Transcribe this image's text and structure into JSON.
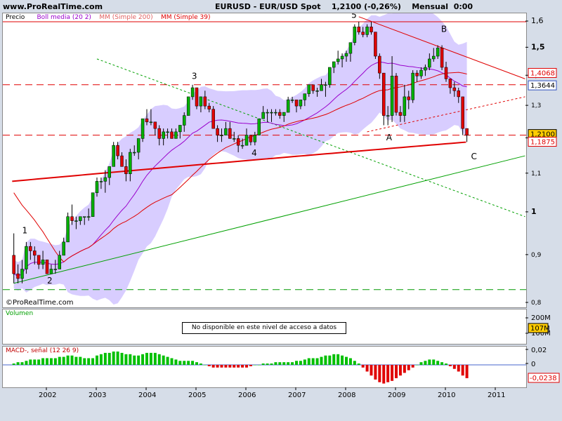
{
  "site": "www.ProRealTime.com",
  "header": {
    "instrument": "EURUSD - EUR/USD Spot",
    "last": "1,2100 (-0,26%)",
    "period": "Mensual",
    "time": "0:00"
  },
  "legend": {
    "price": "Precio",
    "boll": "Boll media (20 2)",
    "mm200": "MM (Simple 200)",
    "mm39": "MM (Simple 39)"
  },
  "watermark": "©ProRealTime.com",
  "volume": {
    "label": "Volumen",
    "notice": "No disponible en este nivel de acceso a datos",
    "ticks": [
      "200M",
      "107M",
      "100M"
    ],
    "highlight": "107M"
  },
  "macd": {
    "label": "MACD-, señal (12 26 9)",
    "ticks": [
      "0,02",
      "0",
      "-0,0238"
    ],
    "highlight": "-0,0238"
  },
  "price_tags": {
    "red1": "1,4068",
    "blue": "1,3644",
    "yellow": "1,2100",
    "red2": "1,1875"
  },
  "colors": {
    "up": "#00b000",
    "down": "#e00000",
    "band": "#cbbcff",
    "boll": "#9900cc",
    "mm39": "#e00000",
    "mm200": "#e00000",
    "trend_green": "#00a000",
    "trend_red": "#e00000",
    "macd_up": "#00c000",
    "macd_down": "#e00000",
    "background": "#d6dde8"
  },
  "wave_labels": [
    "1",
    "2",
    "3",
    "4",
    "5",
    "A",
    "B",
    "C"
  ],
  "chart_data": {
    "type": "candlestick",
    "frequency": "monthly",
    "title": "EURUSD - EUR/USD Spot",
    "xlabel": "",
    "ylabel": "",
    "ylim": [
      0.8,
      1.62
    ],
    "x_ticks": [
      "2002",
      "2003",
      "2004",
      "2005",
      "2006",
      "2007",
      "2008",
      "2009",
      "2010",
      "2011"
    ],
    "y_ticks": [
      "1,6",
      "1,5",
      "1,4",
      "1,3",
      "1,2",
      "1,1",
      "1",
      "0,9",
      "0,8"
    ],
    "grid": false,
    "horizontal_levels": [
      {
        "value": 1.6,
        "style": "solid",
        "color": "red"
      },
      {
        "value": 1.37,
        "style": "dashed",
        "color": "red"
      },
      {
        "value": 1.21,
        "style": "dashed",
        "color": "red"
      },
      {
        "value": 0.827,
        "style": "dashed",
        "color": "green"
      }
    ],
    "trendlines": [
      {
        "color": "green",
        "style": "solid",
        "from": [
          "2001-05",
          0.84
        ],
        "to": [
          "2011-08",
          1.15
        ]
      },
      {
        "color": "green",
        "style": "dotted",
        "from": [
          "2003-01",
          1.46
        ],
        "to": [
          "2011-08",
          0.99
        ]
      },
      {
        "color": "red",
        "style": "solid",
        "from": [
          "2008-04",
          1.62
        ],
        "to": [
          "2011-08",
          1.39
        ]
      },
      {
        "color": "red",
        "style": "dotted",
        "from": [
          "2008-06",
          1.22
        ],
        "to": [
          "2011-08",
          1.33
        ]
      }
    ],
    "candles": [
      {
        "d": "2001-05",
        "o": 0.9,
        "h": 0.95,
        "l": 0.84,
        "c": 0.86
      },
      {
        "d": "2001-06",
        "o": 0.86,
        "h": 0.88,
        "l": 0.84,
        "c": 0.85
      },
      {
        "d": "2001-07",
        "o": 0.85,
        "h": 0.89,
        "l": 0.84,
        "c": 0.87
      },
      {
        "d": "2001-08",
        "o": 0.87,
        "h": 0.93,
        "l": 0.86,
        "c": 0.92
      },
      {
        "d": "2001-09",
        "o": 0.92,
        "h": 0.93,
        "l": 0.89,
        "c": 0.91
      },
      {
        "d": "2001-10",
        "o": 0.91,
        "h": 0.92,
        "l": 0.88,
        "c": 0.9
      },
      {
        "d": "2001-11",
        "o": 0.9,
        "h": 0.9,
        "l": 0.87,
        "c": 0.88
      },
      {
        "d": "2001-12",
        "o": 0.88,
        "h": 0.91,
        "l": 0.87,
        "c": 0.89
      },
      {
        "d": "2002-01",
        "o": 0.89,
        "h": 0.89,
        "l": 0.86,
        "c": 0.86
      },
      {
        "d": "2002-02",
        "o": 0.86,
        "h": 0.88,
        "l": 0.86,
        "c": 0.87
      },
      {
        "d": "2002-03",
        "o": 0.87,
        "h": 0.89,
        "l": 0.86,
        "c": 0.87
      },
      {
        "d": "2002-04",
        "o": 0.87,
        "h": 0.91,
        "l": 0.87,
        "c": 0.9
      },
      {
        "d": "2002-05",
        "o": 0.9,
        "h": 0.94,
        "l": 0.9,
        "c": 0.93
      },
      {
        "d": "2002-06",
        "o": 0.93,
        "h": 1.0,
        "l": 0.93,
        "c": 0.99
      },
      {
        "d": "2002-07",
        "o": 0.99,
        "h": 1.02,
        "l": 0.97,
        "c": 0.98
      },
      {
        "d": "2002-08",
        "o": 0.98,
        "h": 0.99,
        "l": 0.96,
        "c": 0.98
      },
      {
        "d": "2002-09",
        "o": 0.98,
        "h": 0.99,
        "l": 0.97,
        "c": 0.99
      },
      {
        "d": "2002-10",
        "o": 0.99,
        "h": 0.99,
        "l": 0.97,
        "c": 0.99
      },
      {
        "d": "2002-11",
        "o": 0.99,
        "h": 1.01,
        "l": 0.98,
        "c": 0.99
      },
      {
        "d": "2002-12",
        "o": 0.99,
        "h": 1.05,
        "l": 0.99,
        "c": 1.05
      },
      {
        "d": "2003-01",
        "o": 1.05,
        "h": 1.09,
        "l": 1.04,
        "c": 1.08
      },
      {
        "d": "2003-02",
        "o": 1.08,
        "h": 1.09,
        "l": 1.06,
        "c": 1.08
      },
      {
        "d": "2003-03",
        "o": 1.08,
        "h": 1.11,
        "l": 1.05,
        "c": 1.09
      },
      {
        "d": "2003-04",
        "o": 1.09,
        "h": 1.12,
        "l": 1.07,
        "c": 1.12
      },
      {
        "d": "2003-05",
        "o": 1.12,
        "h": 1.19,
        "l": 1.12,
        "c": 1.18
      },
      {
        "d": "2003-06",
        "o": 1.18,
        "h": 1.19,
        "l": 1.14,
        "c": 1.15
      },
      {
        "d": "2003-07",
        "o": 1.15,
        "h": 1.16,
        "l": 1.12,
        "c": 1.12
      },
      {
        "d": "2003-08",
        "o": 1.12,
        "h": 1.14,
        "l": 1.08,
        "c": 1.1
      },
      {
        "d": "2003-09",
        "o": 1.1,
        "h": 1.17,
        "l": 1.08,
        "c": 1.16
      },
      {
        "d": "2003-10",
        "o": 1.16,
        "h": 1.18,
        "l": 1.15,
        "c": 1.16
      },
      {
        "d": "2003-11",
        "o": 1.16,
        "h": 1.2,
        "l": 1.14,
        "c": 1.2
      },
      {
        "d": "2003-12",
        "o": 1.2,
        "h": 1.26,
        "l": 1.19,
        "c": 1.26
      },
      {
        "d": "2004-01",
        "o": 1.26,
        "h": 1.29,
        "l": 1.24,
        "c": 1.25
      },
      {
        "d": "2004-02",
        "o": 1.25,
        "h": 1.29,
        "l": 1.24,
        "c": 1.25
      },
      {
        "d": "2004-03",
        "o": 1.25,
        "h": 1.25,
        "l": 1.21,
        "c": 1.23
      },
      {
        "d": "2004-04",
        "o": 1.23,
        "h": 1.24,
        "l": 1.18,
        "c": 1.2
      },
      {
        "d": "2004-05",
        "o": 1.2,
        "h": 1.23,
        "l": 1.18,
        "c": 1.22
      },
      {
        "d": "2004-06",
        "o": 1.22,
        "h": 1.23,
        "l": 1.2,
        "c": 1.22
      },
      {
        "d": "2004-07",
        "o": 1.22,
        "h": 1.23,
        "l": 1.2,
        "c": 1.2
      },
      {
        "d": "2004-08",
        "o": 1.2,
        "h": 1.23,
        "l": 1.2,
        "c": 1.22
      },
      {
        "d": "2004-09",
        "o": 1.22,
        "h": 1.24,
        "l": 1.2,
        "c": 1.24
      },
      {
        "d": "2004-10",
        "o": 1.24,
        "h": 1.28,
        "l": 1.22,
        "c": 1.27
      },
      {
        "d": "2004-11",
        "o": 1.27,
        "h": 1.33,
        "l": 1.27,
        "c": 1.33
      },
      {
        "d": "2004-12",
        "o": 1.33,
        "h": 1.37,
        "l": 1.32,
        "c": 1.36
      },
      {
        "d": "2005-01",
        "o": 1.36,
        "h": 1.36,
        "l": 1.29,
        "c": 1.3
      },
      {
        "d": "2005-02",
        "o": 1.3,
        "h": 1.33,
        "l": 1.28,
        "c": 1.33
      },
      {
        "d": "2005-03",
        "o": 1.33,
        "h": 1.35,
        "l": 1.29,
        "c": 1.3
      },
      {
        "d": "2005-04",
        "o": 1.3,
        "h": 1.31,
        "l": 1.28,
        "c": 1.29
      },
      {
        "d": "2005-05",
        "o": 1.29,
        "h": 1.3,
        "l": 1.23,
        "c": 1.23
      },
      {
        "d": "2005-06",
        "o": 1.23,
        "h": 1.24,
        "l": 1.19,
        "c": 1.21
      },
      {
        "d": "2005-07",
        "o": 1.21,
        "h": 1.23,
        "l": 1.19,
        "c": 1.21
      },
      {
        "d": "2005-08",
        "o": 1.21,
        "h": 1.25,
        "l": 1.21,
        "c": 1.23
      },
      {
        "d": "2005-09",
        "o": 1.23,
        "h": 1.25,
        "l": 1.2,
        "c": 1.2
      },
      {
        "d": "2005-10",
        "o": 1.2,
        "h": 1.22,
        "l": 1.19,
        "c": 1.2
      },
      {
        "d": "2005-11",
        "o": 1.2,
        "h": 1.21,
        "l": 1.16,
        "c": 1.18
      },
      {
        "d": "2005-12",
        "o": 1.18,
        "h": 1.2,
        "l": 1.17,
        "c": 1.18
      },
      {
        "d": "2006-01",
        "o": 1.18,
        "h": 1.23,
        "l": 1.18,
        "c": 1.21
      },
      {
        "d": "2006-02",
        "o": 1.21,
        "h": 1.21,
        "l": 1.18,
        "c": 1.19
      },
      {
        "d": "2006-03",
        "o": 1.19,
        "h": 1.22,
        "l": 1.18,
        "c": 1.21
      },
      {
        "d": "2006-04",
        "o": 1.21,
        "h": 1.26,
        "l": 1.21,
        "c": 1.26
      },
      {
        "d": "2006-05",
        "o": 1.26,
        "h": 1.3,
        "l": 1.26,
        "c": 1.28
      },
      {
        "d": "2006-06",
        "o": 1.28,
        "h": 1.29,
        "l": 1.25,
        "c": 1.28
      },
      {
        "d": "2006-07",
        "o": 1.28,
        "h": 1.29,
        "l": 1.25,
        "c": 1.28
      },
      {
        "d": "2006-08",
        "o": 1.28,
        "h": 1.29,
        "l": 1.27,
        "c": 1.28
      },
      {
        "d": "2006-09",
        "o": 1.28,
        "h": 1.29,
        "l": 1.26,
        "c": 1.27
      },
      {
        "d": "2006-10",
        "o": 1.27,
        "h": 1.28,
        "l": 1.25,
        "c": 1.28
      },
      {
        "d": "2006-11",
        "o": 1.28,
        "h": 1.33,
        "l": 1.28,
        "c": 1.32
      },
      {
        "d": "2006-12",
        "o": 1.32,
        "h": 1.33,
        "l": 1.31,
        "c": 1.32
      },
      {
        "d": "2007-01",
        "o": 1.32,
        "h": 1.32,
        "l": 1.28,
        "c": 1.3
      },
      {
        "d": "2007-02",
        "o": 1.3,
        "h": 1.32,
        "l": 1.29,
        "c": 1.32
      },
      {
        "d": "2007-03",
        "o": 1.32,
        "h": 1.34,
        "l": 1.3,
        "c": 1.34
      },
      {
        "d": "2007-04",
        "o": 1.34,
        "h": 1.37,
        "l": 1.33,
        "c": 1.37
      },
      {
        "d": "2007-05",
        "o": 1.37,
        "h": 1.37,
        "l": 1.34,
        "c": 1.35
      },
      {
        "d": "2007-06",
        "o": 1.35,
        "h": 1.36,
        "l": 1.33,
        "c": 1.35
      },
      {
        "d": "2007-07",
        "o": 1.35,
        "h": 1.39,
        "l": 1.35,
        "c": 1.37
      },
      {
        "d": "2007-08",
        "o": 1.37,
        "h": 1.38,
        "l": 1.33,
        "c": 1.37
      },
      {
        "d": "2007-09",
        "o": 1.37,
        "h": 1.43,
        "l": 1.36,
        "c": 1.43
      },
      {
        "d": "2007-10",
        "o": 1.43,
        "h": 1.45,
        "l": 1.41,
        "c": 1.45
      },
      {
        "d": "2007-11",
        "o": 1.45,
        "h": 1.49,
        "l": 1.44,
        "c": 1.46
      },
      {
        "d": "2007-12",
        "o": 1.46,
        "h": 1.48,
        "l": 1.43,
        "c": 1.47
      },
      {
        "d": "2008-01",
        "o": 1.47,
        "h": 1.49,
        "l": 1.45,
        "c": 1.48
      },
      {
        "d": "2008-02",
        "o": 1.48,
        "h": 1.52,
        "l": 1.45,
        "c": 1.52
      },
      {
        "d": "2008-03",
        "o": 1.52,
        "h": 1.59,
        "l": 1.51,
        "c": 1.58
      },
      {
        "d": "2008-04",
        "o": 1.58,
        "h": 1.6,
        "l": 1.55,
        "c": 1.56
      },
      {
        "d": "2008-05",
        "o": 1.56,
        "h": 1.58,
        "l": 1.54,
        "c": 1.55
      },
      {
        "d": "2008-06",
        "o": 1.55,
        "h": 1.59,
        "l": 1.54,
        "c": 1.58
      },
      {
        "d": "2008-07",
        "o": 1.58,
        "h": 1.6,
        "l": 1.55,
        "c": 1.56
      },
      {
        "d": "2008-08",
        "o": 1.56,
        "h": 1.56,
        "l": 1.46,
        "c": 1.47
      },
      {
        "d": "2008-09",
        "o": 1.47,
        "h": 1.48,
        "l": 1.39,
        "c": 1.41
      },
      {
        "d": "2008-10",
        "o": 1.41,
        "h": 1.41,
        "l": 1.24,
        "c": 1.27
      },
      {
        "d": "2008-11",
        "o": 1.27,
        "h": 1.3,
        "l": 1.24,
        "c": 1.27
      },
      {
        "d": "2008-12",
        "o": 1.27,
        "h": 1.47,
        "l": 1.25,
        "c": 1.4
      },
      {
        "d": "2009-01",
        "o": 1.4,
        "h": 1.41,
        "l": 1.27,
        "c": 1.28
      },
      {
        "d": "2009-02",
        "o": 1.28,
        "h": 1.3,
        "l": 1.25,
        "c": 1.27
      },
      {
        "d": "2009-03",
        "o": 1.27,
        "h": 1.37,
        "l": 1.25,
        "c": 1.33
      },
      {
        "d": "2009-04",
        "o": 1.33,
        "h": 1.35,
        "l": 1.29,
        "c": 1.32
      },
      {
        "d": "2009-05",
        "o": 1.32,
        "h": 1.42,
        "l": 1.31,
        "c": 1.41
      },
      {
        "d": "2009-06",
        "o": 1.41,
        "h": 1.42,
        "l": 1.38,
        "c": 1.4
      },
      {
        "d": "2009-07",
        "o": 1.4,
        "h": 1.43,
        "l": 1.39,
        "c": 1.42
      },
      {
        "d": "2009-08",
        "o": 1.42,
        "h": 1.44,
        "l": 1.4,
        "c": 1.43
      },
      {
        "d": "2009-09",
        "o": 1.43,
        "h": 1.48,
        "l": 1.42,
        "c": 1.46
      },
      {
        "d": "2009-10",
        "o": 1.46,
        "h": 1.5,
        "l": 1.45,
        "c": 1.47
      },
      {
        "d": "2009-11",
        "o": 1.47,
        "h": 1.51,
        "l": 1.46,
        "c": 1.5
      },
      {
        "d": "2009-12",
        "o": 1.5,
        "h": 1.51,
        "l": 1.42,
        "c": 1.43
      },
      {
        "d": "2010-01",
        "o": 1.43,
        "h": 1.45,
        "l": 1.38,
        "c": 1.39
      },
      {
        "d": "2010-02",
        "o": 1.39,
        "h": 1.39,
        "l": 1.34,
        "c": 1.36
      },
      {
        "d": "2010-03",
        "o": 1.36,
        "h": 1.38,
        "l": 1.33,
        "c": 1.35
      },
      {
        "d": "2010-04",
        "o": 1.35,
        "h": 1.36,
        "l": 1.31,
        "c": 1.33
      },
      {
        "d": "2010-05",
        "o": 1.33,
        "h": 1.33,
        "l": 1.21,
        "c": 1.23
      },
      {
        "d": "2010-06",
        "o": 1.23,
        "h": 1.23,
        "l": 1.19,
        "c": 1.21
      }
    ],
    "macd_histogram": [
      0.001,
      0.002,
      0.002,
      0.003,
      0.004,
      0.004,
      0.004,
      0.005,
      0.005,
      0.005,
      0.005,
      0.006,
      0.006,
      0.007,
      0.007,
      0.006,
      0.006,
      0.005,
      0.005,
      0.005,
      0.007,
      0.008,
      0.009,
      0.009,
      0.01,
      0.01,
      0.009,
      0.008,
      0.008,
      0.007,
      0.007,
      0.008,
      0.009,
      0.009,
      0.009,
      0.008,
      0.007,
      0.006,
      0.005,
      0.004,
      0.003,
      0.003,
      0.003,
      0.003,
      0.002,
      0.001,
      0.0,
      -0.001,
      -0.002,
      -0.002,
      -0.002,
      -0.002,
      -0.002,
      -0.002,
      -0.002,
      -0.002,
      -0.002,
      -0.001,
      0.0,
      0.0,
      0.001,
      0.001,
      0.001,
      0.002,
      0.002,
      0.002,
      0.002,
      0.002,
      0.003,
      0.003,
      0.004,
      0.005,
      0.005,
      0.005,
      0.006,
      0.007,
      0.007,
      0.008,
      0.008,
      0.007,
      0.006,
      0.005,
      0.003,
      0.001,
      -0.002,
      -0.005,
      -0.008,
      -0.011,
      -0.013,
      -0.014,
      -0.013,
      -0.012,
      -0.01,
      -0.008,
      -0.006,
      -0.004,
      -0.002,
      0.0,
      0.002,
      0.003,
      0.004,
      0.004,
      0.003,
      0.002,
      0.001,
      -0.001,
      -0.003,
      -0.005,
      -0.008,
      -0.01
    ]
  }
}
